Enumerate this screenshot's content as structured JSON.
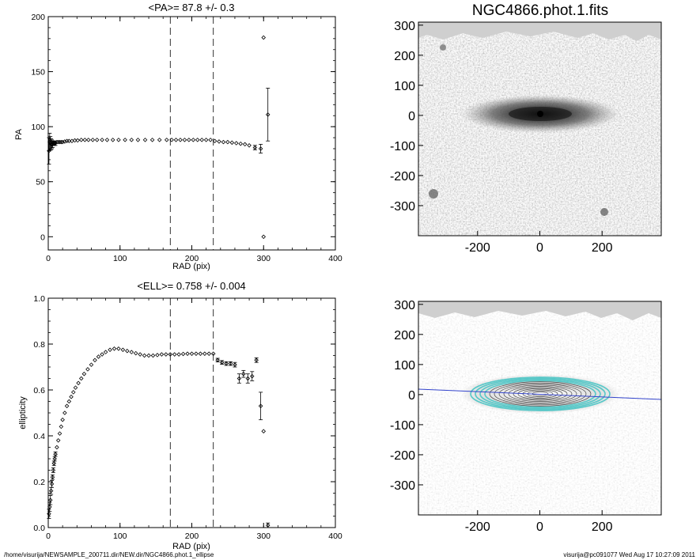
{
  "chart_data": [
    {
      "type": "scatter",
      "title": "<PA>=  87.8 +/-   0.3",
      "xlabel": "RAD (pix)",
      "ylabel": "PA",
      "xlim": [
        0,
        400
      ],
      "ylim": [
        -12,
        200
      ],
      "xticks": [
        "0",
        "100",
        "200",
        "300",
        "400"
      ],
      "yticks": [
        "0",
        "50",
        "100",
        "150",
        "200"
      ],
      "vlines": [
        170,
        230
      ],
      "grid": false,
      "series": [
        {
          "marker": "open-diamond",
          "x": [
            1,
            2,
            3,
            4,
            5,
            6,
            7,
            8,
            9,
            10,
            12,
            14,
            16,
            18,
            20,
            23,
            26,
            29,
            33,
            37,
            41,
            46,
            51,
            56,
            62,
            68,
            75,
            82,
            90,
            98,
            107,
            116,
            125,
            135,
            145,
            155,
            165,
            172,
            178,
            184,
            190,
            196,
            202,
            208,
            214,
            220,
            226,
            232,
            238,
            244,
            250,
            256,
            262,
            268,
            274,
            280,
            288,
            296,
            306,
            300
          ],
          "y": [
            78,
            86,
            85,
            84,
            84,
            84,
            85,
            85,
            85,
            85,
            86,
            86,
            86,
            86,
            86,
            86.5,
            87,
            87,
            87,
            87.5,
            87.5,
            88,
            88,
            88,
            88,
            88,
            88,
            88,
            88,
            88,
            88,
            88,
            88,
            88,
            88,
            88,
            88,
            88,
            88,
            88,
            88,
            88,
            88,
            88,
            88,
            88,
            88,
            87,
            86.5,
            86,
            86,
            85.5,
            85,
            84.5,
            84,
            83,
            81,
            80,
            111,
            0
          ],
          "yerr": [
            12,
            8,
            6,
            5,
            4,
            3,
            2,
            2,
            2,
            2,
            1,
            1,
            1,
            1,
            1,
            1,
            0.5,
            0.5,
            0.5,
            0.5,
            0.5,
            0.5,
            0.5,
            0.5,
            0.5,
            0.5,
            0.5,
            0.5,
            0.5,
            0.5,
            0.5,
            0.5,
            0.5,
            0.5,
            0.5,
            0.5,
            0.5,
            0.5,
            0.5,
            0.5,
            0.5,
            0.5,
            0.5,
            0.5,
            0.5,
            0.5,
            0.5,
            0.5,
            0.5,
            0.5,
            0.5,
            0.5,
            0.5,
            0.5,
            0.5,
            1,
            2,
            4,
            24,
            0
          ]
        },
        {
          "marker": "open-diamond",
          "x": [
            300
          ],
          "y": [
            181
          ],
          "yerr": [
            0
          ]
        }
      ]
    },
    {
      "type": "scatter",
      "title": "<ELL>= 0.758 +/-  0.004",
      "xlabel": "RAD (pix)",
      "ylabel": "ellipticity",
      "xlim": [
        0,
        400
      ],
      "ylim": [
        0.0,
        1.0
      ],
      "xticks": [
        "0",
        "100",
        "200",
        "300",
        "400"
      ],
      "yticks": [
        "0.0",
        "0.2",
        "0.4",
        "0.6",
        "0.8",
        "1.0"
      ],
      "vlines": [
        170,
        230
      ],
      "grid": false,
      "series": [
        {
          "marker": "open-diamond",
          "x": [
            1,
            2,
            3,
            4,
            5,
            6,
            7,
            8,
            9,
            10,
            12,
            14,
            16,
            18,
            20,
            23,
            26,
            29,
            32,
            35,
            38,
            42,
            46,
            50,
            55,
            60,
            65,
            70,
            75,
            80,
            86,
            92,
            98,
            104,
            110,
            116,
            122,
            128,
            134,
            140,
            146,
            152,
            158,
            164,
            170,
            176,
            182,
            188,
            194,
            200,
            206,
            212,
            218,
            224,
            230,
            236,
            242,
            248,
            254,
            260,
            266,
            272,
            278,
            284,
            290,
            296,
            300,
            306
          ],
          "y": [
            0.06,
            0.09,
            0.12,
            0.16,
            0.19,
            0.22,
            0.25,
            0.28,
            0.3,
            0.32,
            0.35,
            0.38,
            0.41,
            0.44,
            0.47,
            0.5,
            0.53,
            0.55,
            0.57,
            0.59,
            0.61,
            0.63,
            0.65,
            0.67,
            0.69,
            0.71,
            0.73,
            0.745,
            0.755,
            0.765,
            0.775,
            0.78,
            0.78,
            0.775,
            0.77,
            0.765,
            0.76,
            0.755,
            0.75,
            0.75,
            0.75,
            0.752,
            0.755,
            0.755,
            0.755,
            0.755,
            0.755,
            0.757,
            0.758,
            0.758,
            0.758,
            0.758,
            0.758,
            0.758,
            0.758,
            0.73,
            0.72,
            0.715,
            0.715,
            0.71,
            0.65,
            0.67,
            0.65,
            0.66,
            0.73,
            0.53,
            0.42,
            0.01
          ],
          "yerr": [
            0.02,
            0.02,
            0.02,
            0.015,
            0.015,
            0.01,
            0.01,
            0.01,
            0.01,
            0.01,
            0.005,
            0.005,
            0.005,
            0.005,
            0.005,
            0.005,
            0.005,
            0.005,
            0.005,
            0.005,
            0.005,
            0.005,
            0.005,
            0.005,
            0.005,
            0.005,
            0.005,
            0.005,
            0.005,
            0.005,
            0.005,
            0.005,
            0.005,
            0.005,
            0.005,
            0.005,
            0.005,
            0.005,
            0.005,
            0.005,
            0.005,
            0.005,
            0.005,
            0.005,
            0.005,
            0.005,
            0.005,
            0.005,
            0.005,
            0.005,
            0.005,
            0.005,
            0.005,
            0.005,
            0.005,
            0.008,
            0.008,
            0.008,
            0.008,
            0.01,
            0.02,
            0.015,
            0.02,
            0.02,
            0.01,
            0.06,
            0.005,
            0.01
          ]
        }
      ]
    },
    {
      "type": "heatmap",
      "title": "NGC4866.phot.1.fits",
      "xlim": [
        -390,
        390
      ],
      "ylim": [
        -400,
        310
      ],
      "xticks": [
        "-200",
        "0",
        "200"
      ],
      "yticks": [
        "300",
        "200",
        "100",
        "0",
        "-100",
        "-200",
        "-300"
      ],
      "colormap": "grayscale",
      "galaxy_center": [
        0,
        0
      ],
      "galaxy_pa": 87.8,
      "galaxy_ellipticity": 0.758
    },
    {
      "type": "heatmap",
      "title": "",
      "xlim": [
        -390,
        390
      ],
      "ylim": [
        -400,
        310
      ],
      "xticks": [
        "-200",
        "0",
        "200"
      ],
      "yticks": [
        "300",
        "200",
        "100",
        "0",
        "-100",
        "-200",
        "-300"
      ],
      "overlay": "fitted isophote ellipses",
      "major_axis_line_color": "#3344cc",
      "ellipse_color": "#58c8c8"
    }
  ],
  "footer": {
    "left": "/home/visurija/NEWSAMPLE_200711.dir/NEW.dir/NGC4866.phot.1_ellipse",
    "right": "visurija@pc091077  Wed Aug 17 10:27:09 2011"
  },
  "colors": {
    "axis": "#000000",
    "sky_light": "#f4f4f4",
    "sky_dark": "#7a7a7a",
    "ellipse": "#58c8c8",
    "major_axis": "#3344cc"
  }
}
